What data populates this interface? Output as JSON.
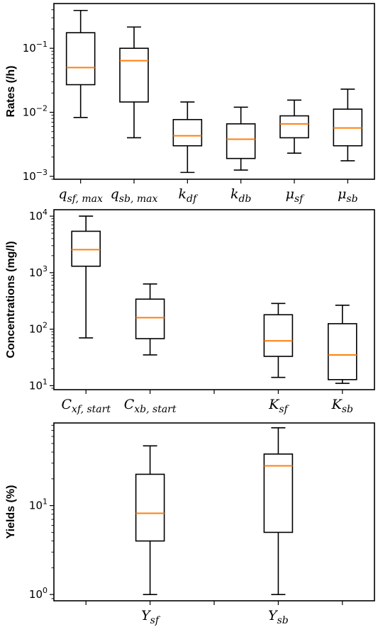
{
  "chart_data": [
    {
      "type": "box",
      "ylabel": "Rates (/h)",
      "yscale": "log",
      "ylim": [
        0.0009,
        0.5
      ],
      "yticks": [
        {
          "value": 0.001,
          "mantissa": "10",
          "exponent": "−3"
        },
        {
          "value": 0.01,
          "mantissa": "10",
          "exponent": "−2"
        },
        {
          "value": 0.1,
          "mantissa": "10",
          "exponent": "−1"
        }
      ],
      "xlabels": [
        {
          "main": "q",
          "sub": "sf, max"
        },
        {
          "main": "q",
          "sub": "sb, max"
        },
        {
          "main": "k",
          "sub": "df"
        },
        {
          "main": "k",
          "sub": "db"
        },
        {
          "main": "μ",
          "sub": "sf"
        },
        {
          "main": "μ",
          "sub": "sb"
        }
      ],
      "boxes": [
        {
          "whislo": 0.0083,
          "q1": 0.027,
          "median": 0.05,
          "q3": 0.175,
          "whishi": 0.39
        },
        {
          "whislo": 0.004,
          "q1": 0.0145,
          "median": 0.064,
          "q3": 0.1,
          "whishi": 0.215
        },
        {
          "whislo": 0.00115,
          "q1": 0.003,
          "median": 0.0043,
          "q3": 0.0077,
          "whishi": 0.0145
        },
        {
          "whislo": 0.00125,
          "q1": 0.0019,
          "median": 0.0038,
          "q3": 0.0066,
          "whishi": 0.012
        },
        {
          "whislo": 0.0023,
          "q1": 0.004,
          "median": 0.0066,
          "q3": 0.0088,
          "whishi": 0.0155
        },
        {
          "whislo": 0.00175,
          "q1": 0.003,
          "median": 0.0057,
          "q3": 0.0112,
          "whishi": 0.023
        }
      ],
      "median_color": "#ff7f0e"
    },
    {
      "type": "box",
      "ylabel": "Concentrations (mg/l)",
      "yscale": "log",
      "ylim": [
        8.5,
        13000
      ],
      "yticks": [
        {
          "value": 10,
          "mantissa": "10",
          "exponent": "1"
        },
        {
          "value": 100,
          "mantissa": "10",
          "exponent": "2"
        },
        {
          "value": 1000,
          "mantissa": "10",
          "exponent": "3"
        },
        {
          "value": 10000,
          "mantissa": "10",
          "exponent": "4"
        }
      ],
      "xlabels": [
        {
          "main": "C",
          "sub": "xf, start"
        },
        {
          "main": "C",
          "sub": "xb, start"
        },
        {
          "main": "",
          "sub": ""
        },
        {
          "main": "K",
          "sub": "sf"
        },
        {
          "main": "K",
          "sub": "sb"
        }
      ],
      "boxes": [
        {
          "whislo": 70,
          "q1": 1300,
          "median": 2550,
          "q3": 5400,
          "whishi": 10000
        },
        {
          "whislo": 35,
          "q1": 68,
          "median": 160,
          "q3": 340,
          "whishi": 630
        },
        null,
        {
          "whislo": 14,
          "q1": 33,
          "median": 62,
          "q3": 180,
          "whishi": 285
        },
        {
          "whislo": 11,
          "q1": 12.8,
          "median": 35,
          "q3": 125,
          "whishi": 265
        }
      ],
      "median_color": "#ff7f0e"
    },
    {
      "type": "box",
      "ylabel": "Yields (%)",
      "yscale": "log",
      "ylim": [
        0.85,
        85
      ],
      "yticks": [
        {
          "value": 1,
          "mantissa": "10",
          "exponent": "0"
        },
        {
          "value": 10,
          "mantissa": "10",
          "exponent": "1"
        }
      ],
      "xlabels": [
        {
          "main": "",
          "sub": ""
        },
        {
          "main": "Y",
          "sub": "sf"
        },
        {
          "main": "",
          "sub": ""
        },
        {
          "main": "Y",
          "sub": "sb"
        },
        {
          "main": "",
          "sub": ""
        }
      ],
      "boxes": [
        null,
        {
          "whislo": 1,
          "q1": 4,
          "median": 8.2,
          "q3": 22.5,
          "whishi": 47
        },
        null,
        {
          "whislo": 1,
          "q1": 5,
          "median": 28,
          "q3": 38,
          "whishi": 75
        },
        null
      ],
      "median_color": "#ff7f0e"
    }
  ]
}
